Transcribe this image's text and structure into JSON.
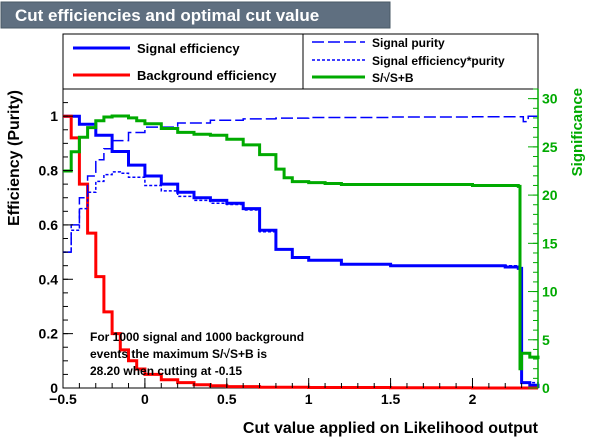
{
  "chart_data": {
    "type": "line",
    "title": "Cut efficiencies and optimal cut value",
    "xlabel": "Cut value applied on Likelihood output",
    "ylabel": "Efficiency (Purity)",
    "ylabel_right": "Significance",
    "xlim": [
      -0.5,
      2.4
    ],
    "ylim": [
      0,
      1.1
    ],
    "ylim_right": [
      0,
      31
    ],
    "x_ticks": [
      "−0.5",
      "0",
      "0.5",
      "1",
      "1.5",
      "2"
    ],
    "x_tick_values": [
      -0.5,
      0,
      0.5,
      1,
      1.5,
      2
    ],
    "y_ticks": [
      "0",
      "0.2",
      "0.4",
      "0.6",
      "0.8",
      "1"
    ],
    "y_tick_values": [
      0,
      0.2,
      0.4,
      0.6,
      0.8,
      1
    ],
    "y_right_ticks": [
      "0",
      "5",
      "10",
      "15",
      "20",
      "25",
      "30"
    ],
    "y_right_tick_values": [
      0,
      5,
      10,
      15,
      20,
      25,
      30
    ],
    "grid": false,
    "legend_placement": "top",
    "legend": [
      {
        "name": "Signal efficiency",
        "color": "#0000ff",
        "style": "solid"
      },
      {
        "name": "Background efficiency",
        "color": "#ff0000",
        "style": "solid"
      },
      {
        "name": "Signal purity",
        "color": "#0000ff",
        "style": "dashed"
      },
      {
        "name": "Signal efficiency*purity",
        "color": "#0000ff",
        "style": "dotted"
      },
      {
        "name": "S/√S+B",
        "color": "#00aa00",
        "style": "solid"
      }
    ],
    "annotation": [
      "For 1000 signal and 1000 background",
      "events the maximum S/√S+B is",
      "28.20 when cutting at -0.15"
    ],
    "series": [
      {
        "name": "Signal efficiency",
        "axis": "left",
        "color": "#0000ff",
        "x": [
          -0.5,
          -0.4,
          -0.3,
          -0.2,
          -0.1,
          0.0,
          0.1,
          0.2,
          0.3,
          0.4,
          0.5,
          0.6,
          0.7,
          0.8,
          0.9,
          1.0,
          1.2,
          1.5,
          1.8,
          2.0,
          2.2,
          2.28,
          2.3,
          2.35,
          2.4
        ],
        "y": [
          1.0,
          0.97,
          0.93,
          0.87,
          0.82,
          0.78,
          0.75,
          0.72,
          0.7,
          0.69,
          0.68,
          0.66,
          0.58,
          0.51,
          0.48,
          0.47,
          0.455,
          0.45,
          0.45,
          0.45,
          0.445,
          0.44,
          0.02,
          0.01,
          0.0
        ]
      },
      {
        "name": "Background efficiency",
        "axis": "left",
        "color": "#ff0000",
        "x": [
          -0.5,
          -0.45,
          -0.4,
          -0.35,
          -0.3,
          -0.25,
          -0.2,
          -0.15,
          -0.1,
          -0.05,
          0.0,
          0.1,
          0.2,
          0.3,
          0.4,
          0.5,
          0.7,
          1.0,
          1.5,
          2.0,
          2.4
        ],
        "y": [
          1.0,
          0.92,
          0.75,
          0.57,
          0.41,
          0.28,
          0.2,
          0.14,
          0.1,
          0.07,
          0.05,
          0.03,
          0.02,
          0.012,
          0.008,
          0.005,
          0.003,
          0.002,
          0.001,
          0.0,
          0.0
        ]
      },
      {
        "name": "Signal purity",
        "axis": "left",
        "color": "#0000ff",
        "x": [
          -0.5,
          -0.45,
          -0.4,
          -0.35,
          -0.3,
          -0.25,
          -0.2,
          -0.1,
          0.0,
          0.2,
          0.4,
          0.6,
          0.8,
          1.0,
          1.5,
          2.0,
          2.3,
          2.31,
          2.33,
          2.34,
          2.4
        ],
        "y": [
          0.5,
          0.6,
          0.7,
          0.78,
          0.84,
          0.88,
          0.91,
          0.94,
          0.96,
          0.975,
          0.985,
          0.99,
          0.993,
          0.995,
          0.997,
          0.998,
          0.998,
          0.98,
          0.98,
          1.0,
          1.0
        ]
      },
      {
        "name": "Signal efficiency*purity",
        "axis": "left",
        "color": "#0000ff",
        "x": [
          -0.5,
          -0.45,
          -0.4,
          -0.35,
          -0.3,
          -0.25,
          -0.2,
          -0.15,
          -0.1,
          0.0,
          0.1,
          0.2,
          0.3,
          0.4,
          0.5,
          0.6,
          0.7,
          0.8,
          0.9,
          1.0,
          1.2,
          1.5,
          2.0,
          2.28,
          2.3,
          2.4
        ],
        "y": [
          0.5,
          0.58,
          0.66,
          0.72,
          0.76,
          0.785,
          0.795,
          0.79,
          0.775,
          0.745,
          0.725,
          0.705,
          0.69,
          0.68,
          0.675,
          0.655,
          0.575,
          0.51,
          0.48,
          0.47,
          0.455,
          0.45,
          0.45,
          0.44,
          0.02,
          0.0
        ]
      },
      {
        "name": "S/√S+B",
        "axis": "right",
        "color": "#00aa00",
        "x": [
          -0.5,
          -0.45,
          -0.4,
          -0.35,
          -0.3,
          -0.25,
          -0.2,
          -0.15,
          -0.1,
          -0.05,
          0.0,
          0.1,
          0.2,
          0.3,
          0.4,
          0.5,
          0.6,
          0.7,
          0.8,
          0.85,
          0.9,
          1.0,
          1.1,
          1.2,
          1.5,
          2.0,
          2.28,
          2.29,
          2.3,
          2.35,
          2.4
        ],
        "y": [
          22.5,
          24.5,
          26.0,
          27.0,
          27.7,
          28.1,
          28.2,
          28.2,
          28.0,
          27.7,
          27.4,
          26.9,
          26.5,
          26.3,
          26.2,
          25.8,
          25.2,
          24.2,
          22.7,
          21.8,
          21.4,
          21.3,
          21.2,
          21.1,
          21.1,
          21.0,
          20.9,
          2.0,
          3.6,
          3.2,
          3.0
        ]
      }
    ]
  }
}
